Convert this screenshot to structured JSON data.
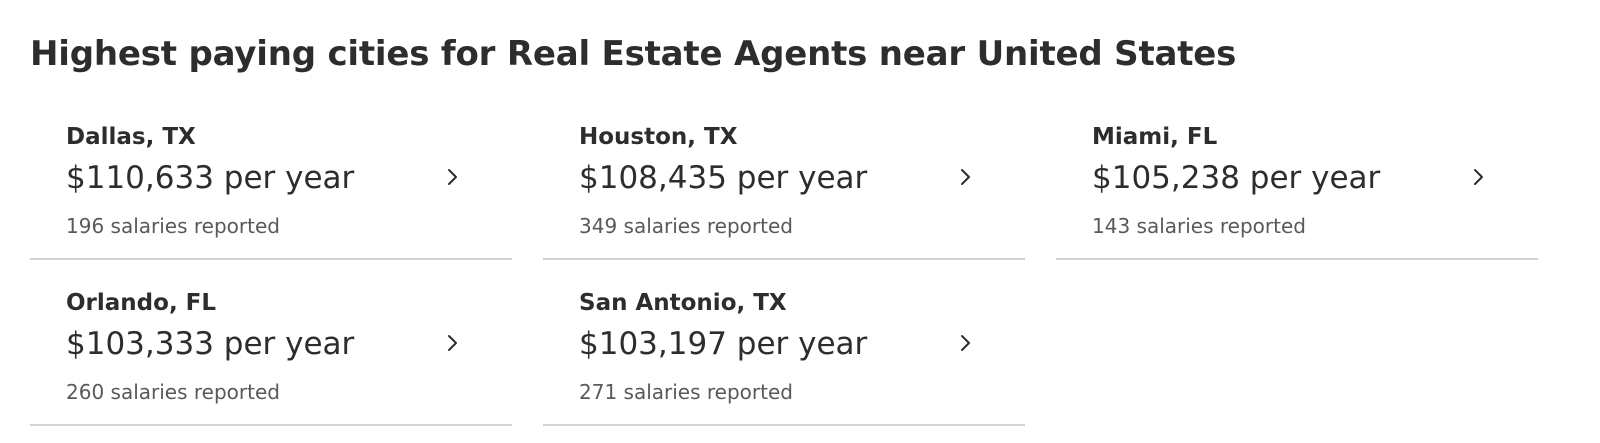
{
  "heading": "Highest paying cities for Real Estate Agents near United States",
  "cities": [
    {
      "name": "Dallas, TX",
      "salary": "$110,633 per year",
      "reported": "196 salaries reported"
    },
    {
      "name": "Houston, TX",
      "salary": "$108,435 per year",
      "reported": "349 salaries reported"
    },
    {
      "name": "Miami, FL",
      "salary": "$105,238 per year",
      "reported": "143 salaries reported"
    },
    {
      "name": "Orlando, FL",
      "salary": "$103,333 per year",
      "reported": "260 salaries reported"
    },
    {
      "name": "San Antonio, TX",
      "salary": "$103,197 per year",
      "reported": "271 salaries reported"
    }
  ],
  "icons": {
    "chevron": "chevron-right-icon"
  },
  "colors": {
    "text": "#2d2d2d",
    "muted": "#595959",
    "divider": "#d4d2d0"
  }
}
